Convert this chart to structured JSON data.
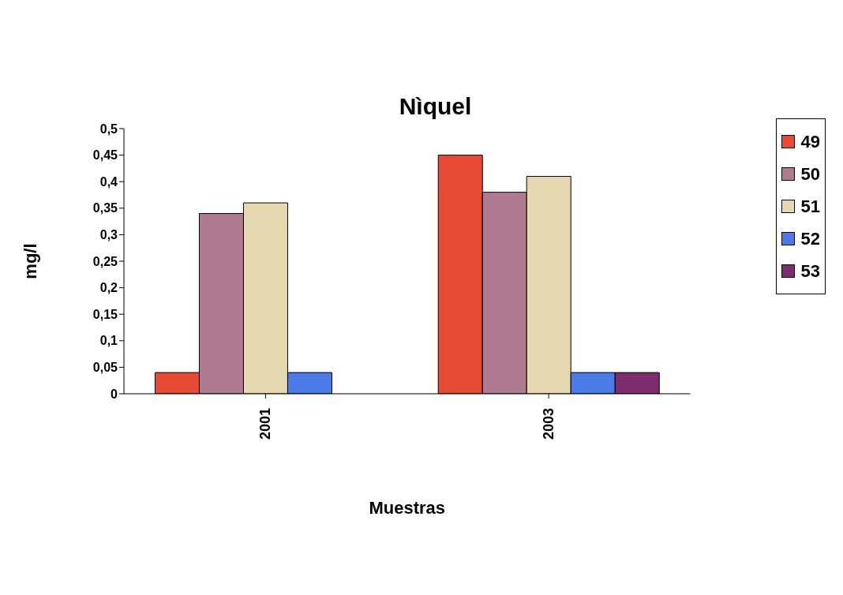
{
  "chart_data": {
    "type": "bar",
    "title": "Nìquel",
    "xlabel": "Muestras",
    "ylabel": "mg/l",
    "categories": [
      "2001",
      "2003"
    ],
    "series": [
      {
        "name": "49",
        "color": "#e84a35",
        "values": [
          0.04,
          0.45
        ]
      },
      {
        "name": "50",
        "color": "#b07a91",
        "values": [
          0.34,
          0.38
        ]
      },
      {
        "name": "51",
        "color": "#e5d8b0",
        "values": [
          0.36,
          0.41
        ]
      },
      {
        "name": "52",
        "color": "#4b7be6",
        "values": [
          0.04,
          0.04
        ]
      },
      {
        "name": "53",
        "color": "#7d2d6e",
        "values": [
          null,
          0.04
        ]
      }
    ],
    "ylim": [
      0,
      0.5
    ],
    "yticks": [
      0,
      {
        "value": 0.05,
        "label": "0,05"
      },
      {
        "value": 0.1,
        "label": "0,1"
      },
      {
        "value": 0.15,
        "label": "0,15"
      },
      {
        "value": 0.2,
        "label": "0,2"
      },
      {
        "value": 0.25,
        "label": "0,25"
      },
      {
        "value": 0.3,
        "label": "0,3"
      },
      {
        "value": 0.35,
        "label": "0,35"
      },
      {
        "value": 0.4,
        "label": "0,4"
      },
      {
        "value": 0.45,
        "label": "0,45"
      },
      {
        "value": 0.5,
        "label": "0,5"
      }
    ],
    "grid": false,
    "legend": "right"
  }
}
